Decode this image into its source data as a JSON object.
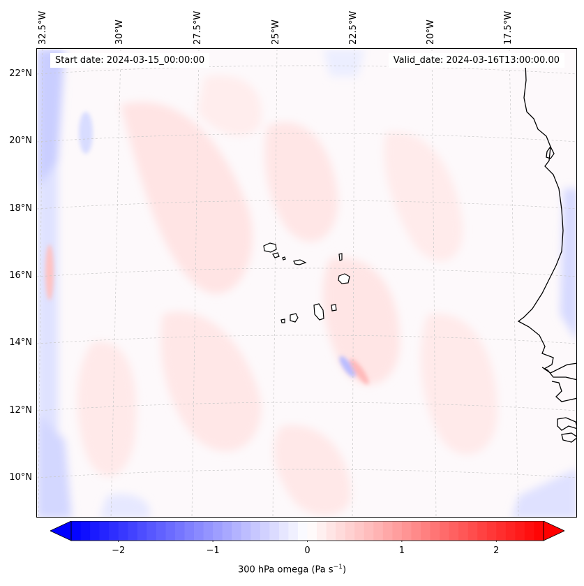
{
  "map": {
    "region": "Cabo Verde / West African coast",
    "longitude_labels": [
      "32.5°W",
      "30°W",
      "27.5°W",
      "25°W",
      "22.5°W",
      "20°W",
      "17.5°W"
    ],
    "latitude_labels": [
      "22°N",
      "20°N",
      "18°N",
      "16°N",
      "14°N",
      "12°N",
      "10°N"
    ],
    "start_date": "Start date: 2024-03-15_00:00:00",
    "valid_date": "Valid_date: 2024-03-16T13:00:00.00",
    "field": "300 hPa omega",
    "colormap": "bwr",
    "colors": {
      "negative": "#0000ff",
      "zero": "#ffffff",
      "positive": "#ff0000",
      "coastline": "#000000",
      "gridline": "#c8c8c8"
    }
  },
  "colorbar": {
    "min": -2.5,
    "max": 2.5,
    "tick_labels": [
      "−2",
      "−1",
      "0",
      "1",
      "2"
    ],
    "tick_values": [
      -2,
      -1,
      0,
      1,
      2
    ],
    "label_prefix": "300 hPa omega (Pa s",
    "label_exponent": "−1",
    "label_suffix": ")"
  }
}
